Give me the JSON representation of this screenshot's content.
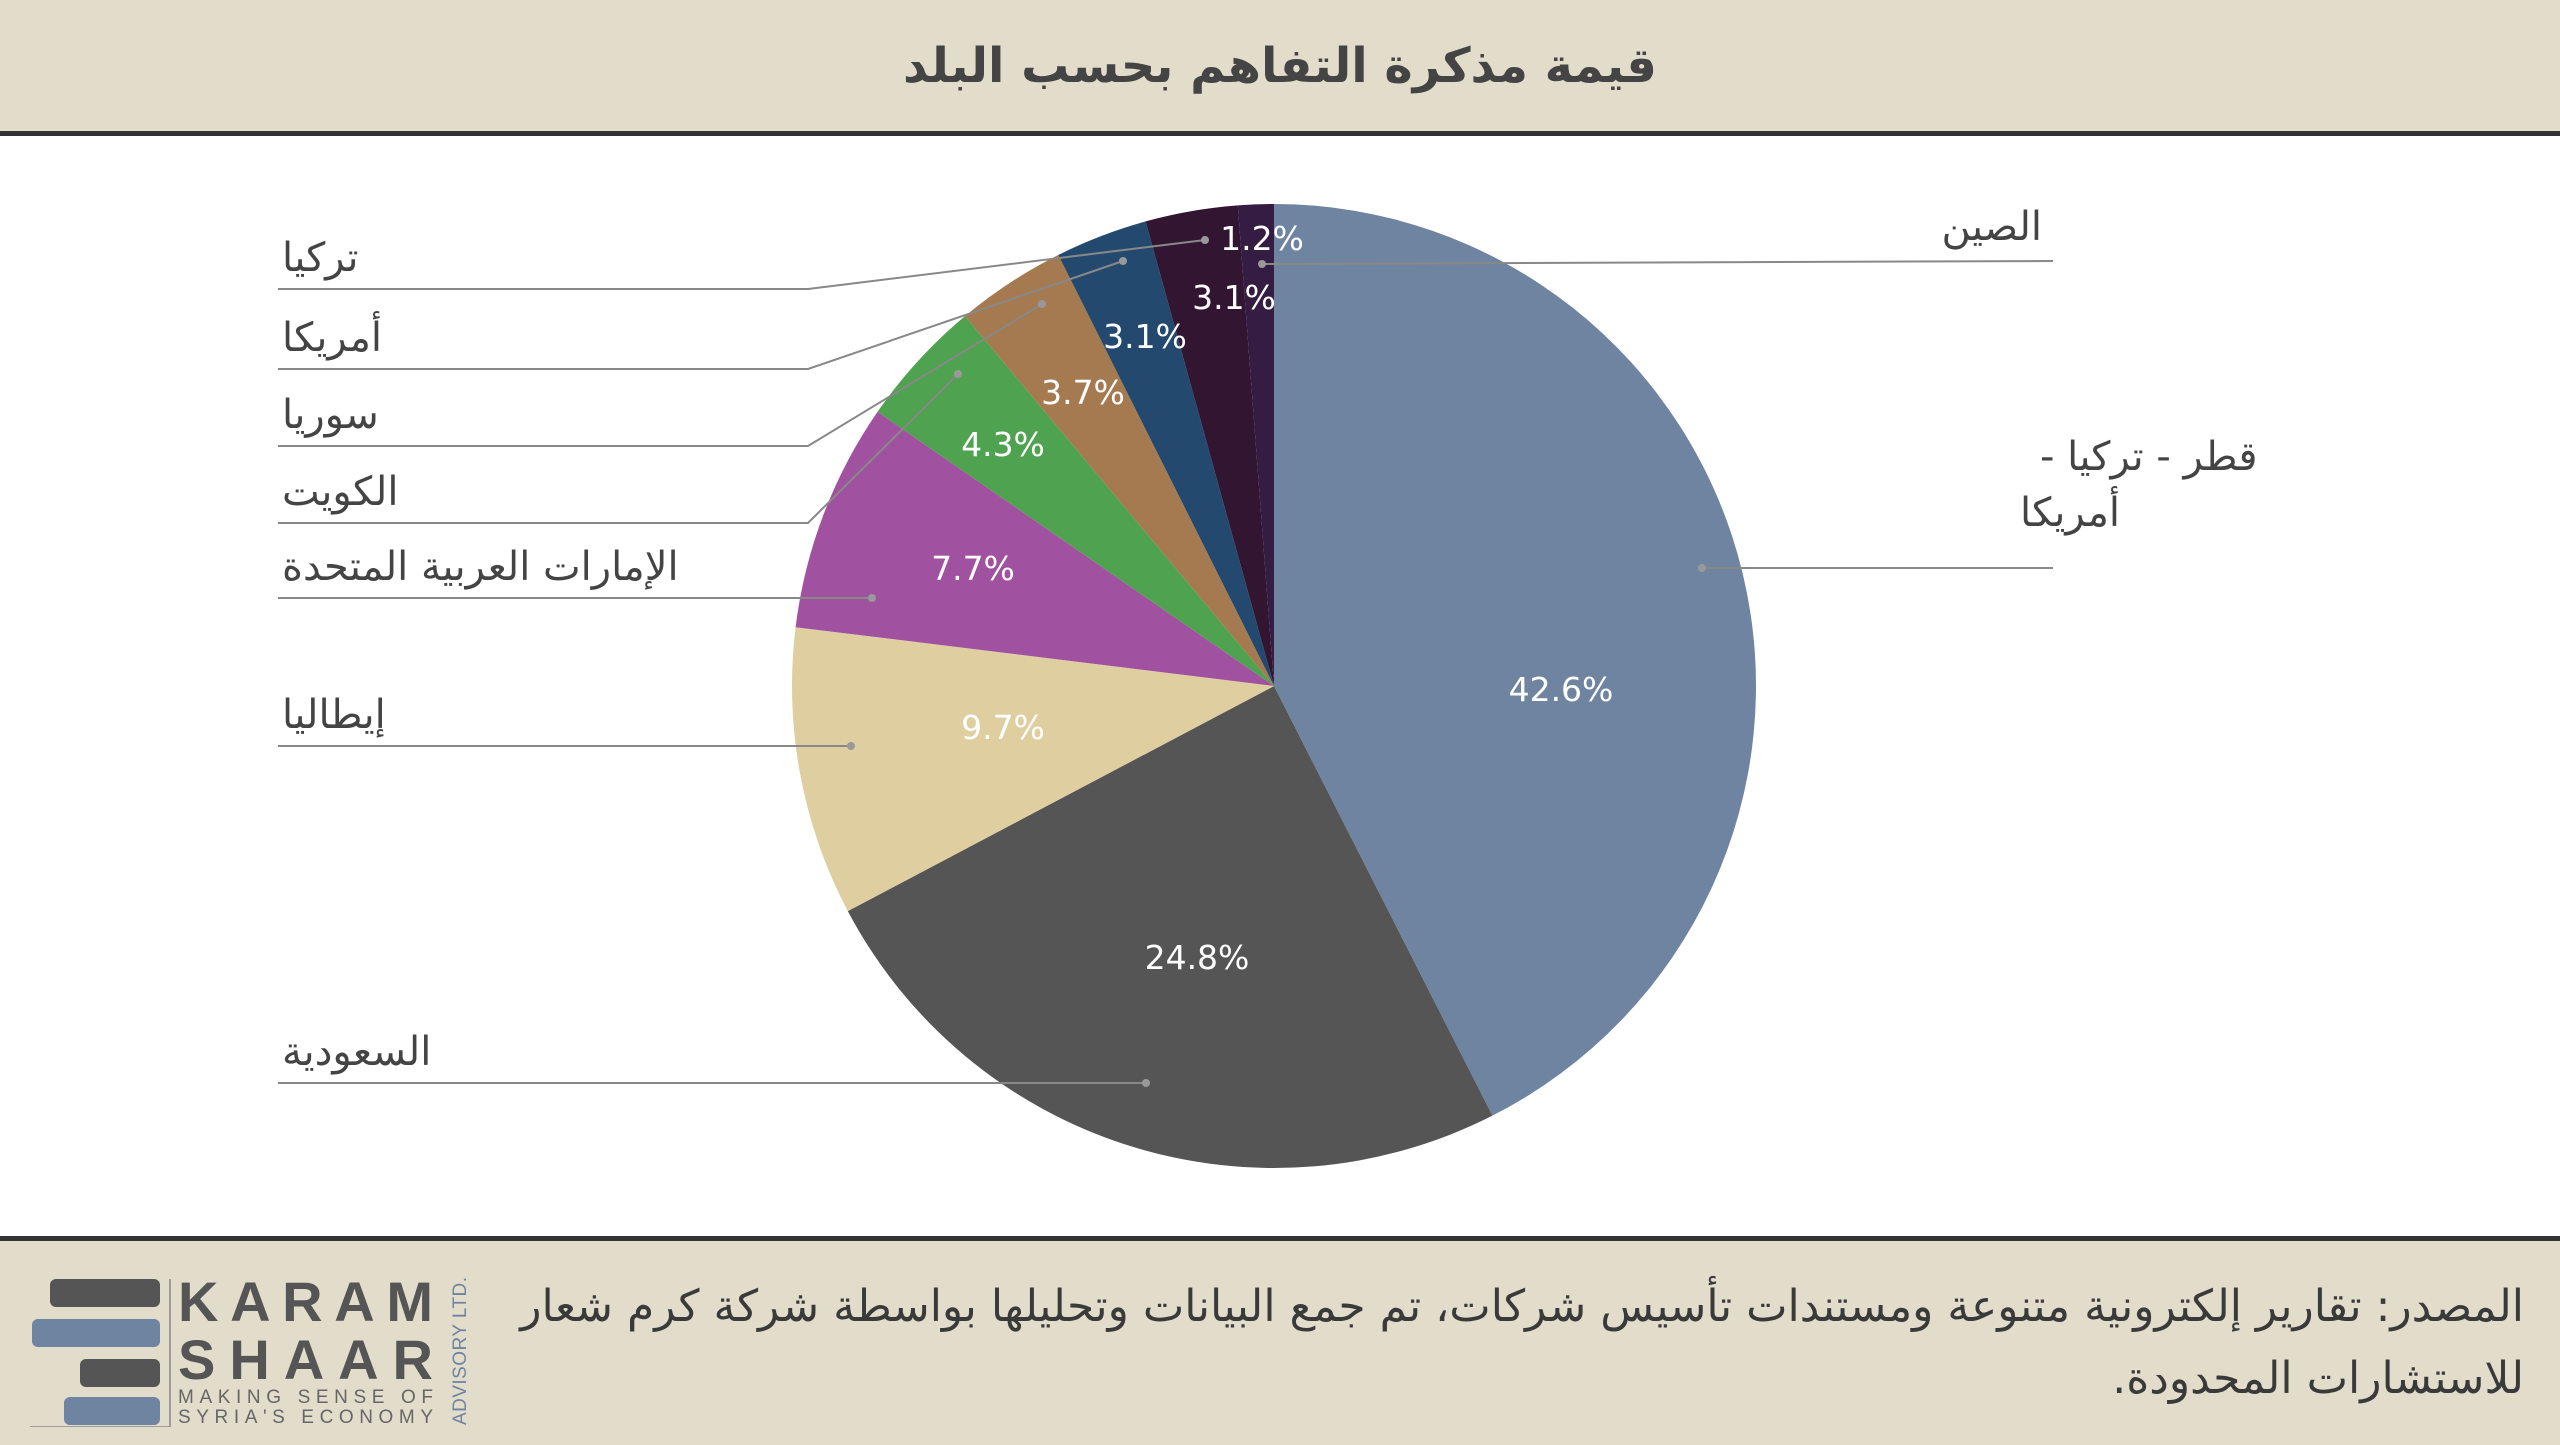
{
  "title": "قيمة مذكرة التفاهم بحسب البلد",
  "chart_data": {
    "type": "pie",
    "title": "قيمة مذكرة التفاهم بحسب البلد",
    "start": "top",
    "direction": "clockwise",
    "slices": [
      {
        "label": "قطر - تركيا - أمريكا",
        "label_lines": [
          "قطر - تركيا -",
          "أمريكا"
        ],
        "value": 42.6,
        "display": "42.6%",
        "color": "#6f84a0"
      },
      {
        "label": "السعودية",
        "value": 24.8,
        "display": "24.8%",
        "color": "#555555"
      },
      {
        "label": "إيطاليا",
        "value": 9.7,
        "display": "9.7%",
        "color": "#dfcfa0"
      },
      {
        "label": "الإمارات العربية المتحدة",
        "value": 7.7,
        "display": "7.7%",
        "color": "#a052a0"
      },
      {
        "label": "الكويت",
        "value": 4.3,
        "display": "4.3%",
        "color": "#4fa24f"
      },
      {
        "label": "سوريا",
        "value": 3.7,
        "display": "3.7%",
        "color": "#a57a50"
      },
      {
        "label": "أمريكا",
        "value": 3.1,
        "display": "3.1%",
        "color": "#234a6e"
      },
      {
        "label": "تركيا",
        "value": 3.1,
        "display": "3.1%",
        "color": "#321530"
      },
      {
        "label": "الصين",
        "value": 1.2,
        "display": "1.2%",
        "color": "#351c42"
      }
    ]
  },
  "footer": {
    "source": "المصدر: تقارير إلكترونية متنوعة ومستندات تأسيس شركات، تم جمع البيانات وتحليلها بواسطة شركة كرم شعار للاستشارات المحدودة.",
    "logo": {
      "line1": "KARAM",
      "line2": "SHAAR",
      "tag1": "MAKING SENSE OF",
      "tag2": "SYRIA'S ECONOMY",
      "side": "ADVISORY LTD."
    }
  }
}
